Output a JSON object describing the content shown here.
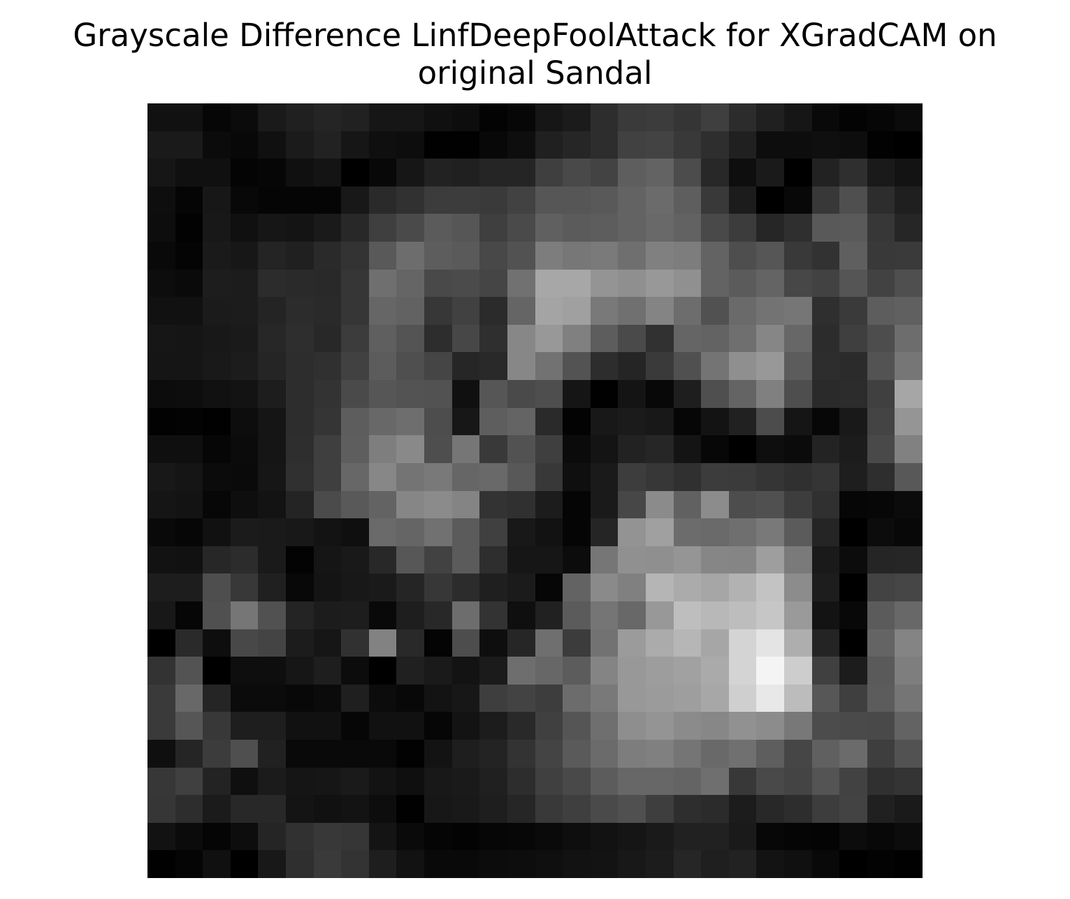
{
  "chart_data": {
    "type": "heatmap",
    "title_lines": [
      "Grayscale Difference LinfDeepFoolAttack for XGradCAM on",
      "original Sandal"
    ],
    "colormap": "gray",
    "axes": "off",
    "grid": false,
    "legend": "none",
    "rows": 28,
    "cols": 28,
    "values": [
      [
        17,
        17,
        6,
        11,
        26,
        32,
        37,
        33,
        22,
        22,
        16,
        13,
        3,
        7,
        22,
        27,
        45,
        58,
        60,
        53,
        63,
        44,
        32,
        22,
        9,
        3,
        6,
        11
      ],
      [
        26,
        26,
        11,
        8,
        16,
        27,
        34,
        22,
        15,
        13,
        1,
        1,
        8,
        14,
        32,
        38,
        45,
        65,
        67,
        57,
        46,
        32,
        13,
        13,
        15,
        13,
        2,
        0
      ],
      [
        22,
        16,
        16,
        4,
        6,
        16,
        20,
        0,
        8,
        22,
        34,
        32,
        37,
        37,
        63,
        73,
        67,
        94,
        99,
        76,
        40,
        14,
        26,
        0,
        34,
        47,
        26,
        19
      ],
      [
        14,
        5,
        23,
        8,
        5,
        5,
        5,
        24,
        42,
        49,
        60,
        60,
        58,
        66,
        86,
        86,
        89,
        99,
        107,
        94,
        57,
        28,
        0,
        8,
        56,
        79,
        45,
        31
      ],
      [
        13,
        2,
        24,
        16,
        22,
        20,
        26,
        40,
        63,
        74,
        91,
        86,
        63,
        74,
        96,
        91,
        93,
        99,
        105,
        98,
        73,
        60,
        38,
        47,
        89,
        90,
        55,
        38
      ],
      [
        9,
        4,
        26,
        23,
        36,
        32,
        42,
        51,
        89,
        109,
        93,
        90,
        72,
        82,
        125,
        119,
        122,
        111,
        128,
        125,
        99,
        78,
        86,
        57,
        50,
        95,
        57,
        58
      ],
      [
        13,
        10,
        29,
        28,
        44,
        42,
        41,
        54,
        111,
        101,
        73,
        75,
        69,
        113,
        167,
        167,
        148,
        143,
        152,
        144,
        99,
        91,
        100,
        71,
        66,
        85,
        66,
        79
      ],
      [
        17,
        17,
        27,
        28,
        36,
        44,
        42,
        54,
        102,
        98,
        55,
        65,
        43,
        101,
        164,
        160,
        121,
        112,
        132,
        109,
        81,
        106,
        115,
        118,
        47,
        58,
        93,
        96
      ],
      [
        22,
        21,
        24,
        26,
        39,
        46,
        40,
        60,
        95,
        84,
        45,
        71,
        47,
        135,
        152,
        128,
        93,
        74,
        49,
        101,
        99,
        111,
        134,
        103,
        44,
        63,
        77,
        109
      ],
      [
        21,
        21,
        25,
        28,
        37,
        45,
        48,
        65,
        92,
        79,
        69,
        38,
        41,
        135,
        114,
        83,
        45,
        37,
        58,
        80,
        116,
        143,
        152,
        92,
        45,
        43,
        83,
        118
      ],
      [
        12,
        13,
        17,
        19,
        29,
        45,
        51,
        74,
        86,
        83,
        82,
        16,
        86,
        74,
        78,
        21,
        1,
        20,
        8,
        30,
        79,
        100,
        128,
        78,
        42,
        44,
        64,
        166
      ],
      [
        2,
        3,
        1,
        13,
        21,
        45,
        53,
        93,
        104,
        110,
        77,
        23,
        94,
        100,
        42,
        3,
        24,
        27,
        24,
        6,
        19,
        33,
        76,
        21,
        7,
        25,
        68,
        149
      ],
      [
        15,
        15,
        6,
        11,
        21,
        46,
        63,
        94,
        126,
        137,
        78,
        118,
        57,
        82,
        63,
        11,
        20,
        34,
        38,
        20,
        7,
        0,
        14,
        11,
        35,
        28,
        73,
        129
      ],
      [
        24,
        21,
        11,
        10,
        22,
        48,
        63,
        103,
        135,
        116,
        121,
        102,
        105,
        88,
        56,
        15,
        26,
        61,
        55,
        48,
        60,
        59,
        53,
        48,
        53,
        30,
        46,
        88
      ],
      [
        21,
        19,
        7,
        14,
        19,
        36,
        75,
        89,
        99,
        134,
        139,
        132,
        51,
        48,
        28,
        5,
        26,
        71,
        139,
        97,
        140,
        77,
        80,
        61,
        48,
        6,
        7,
        11
      ],
      [
        9,
        6,
        17,
        27,
        26,
        24,
        19,
        15,
        106,
        101,
        113,
        91,
        64,
        24,
        18,
        5,
        37,
        147,
        160,
        108,
        106,
        111,
        121,
        91,
        37,
        0,
        12,
        8
      ],
      [
        18,
        17,
        39,
        44,
        26,
        3,
        21,
        25,
        40,
        87,
        66,
        91,
        46,
        22,
        22,
        12,
        118,
        144,
        143,
        149,
        134,
        133,
        158,
        122,
        26,
        12,
        37,
        38
      ],
      [
        29,
        29,
        78,
        56,
        32,
        8,
        20,
        24,
        26,
        37,
        55,
        44,
        31,
        27,
        6,
        99,
        138,
        128,
        181,
        171,
        166,
        178,
        195,
        140,
        29,
        0,
        67,
        70
      ],
      [
        24,
        6,
        80,
        118,
        81,
        36,
        28,
        29,
        9,
        30,
        40,
        109,
        51,
        15,
        33,
        91,
        117,
        104,
        152,
        190,
        184,
        189,
        198,
        154,
        19,
        8,
        91,
        104
      ],
      [
        0,
        42,
        14,
        72,
        68,
        28,
        22,
        49,
        130,
        41,
        4,
        77,
        14,
        38,
        111,
        60,
        114,
        155,
        171,
        182,
        166,
        212,
        228,
        174,
        36,
        0,
        100,
        132
      ],
      [
        51,
        83,
        0,
        14,
        14,
        22,
        30,
        12,
        0,
        32,
        26,
        19,
        27,
        110,
        103,
        92,
        132,
        152,
        157,
        161,
        170,
        212,
        244,
        205,
        64,
        28,
        90,
        126
      ],
      [
        58,
        104,
        37,
        11,
        11,
        8,
        11,
        31,
        12,
        8,
        19,
        23,
        62,
        67,
        61,
        108,
        121,
        152,
        155,
        158,
        167,
        207,
        232,
        188,
        87,
        63,
        92,
        117
      ],
      [
        58,
        86,
        56,
        30,
        30,
        17,
        17,
        6,
        17,
        17,
        6,
        19,
        28,
        41,
        64,
        85,
        111,
        142,
        148,
        139,
        135,
        145,
        140,
        120,
        76,
        74,
        73,
        99
      ],
      [
        15,
        37,
        60,
        79,
        33,
        9,
        9,
        9,
        9,
        2,
        19,
        30,
        35,
        51,
        68,
        90,
        107,
        125,
        128,
        117,
        105,
        112,
        94,
        70,
        96,
        107,
        62,
        82
      ],
      [
        55,
        64,
        35,
        15,
        27,
        21,
        22,
        26,
        19,
        15,
        24,
        26,
        32,
        45,
        64,
        73,
        92,
        103,
        103,
        100,
        111,
        56,
        73,
        68,
        84,
        66,
        48,
        52
      ],
      [
        54,
        45,
        27,
        40,
        40,
        20,
        17,
        19,
        13,
        1,
        23,
        25,
        30,
        38,
        57,
        63,
        74,
        80,
        62,
        46,
        43,
        28,
        40,
        45,
        61,
        67,
        32,
        26
      ],
      [
        18,
        11,
        5,
        13,
        37,
        49,
        56,
        54,
        20,
        10,
        5,
        3,
        6,
        7,
        10,
        14,
        18,
        21,
        26,
        33,
        33,
        26,
        7,
        5,
        4,
        12,
        8,
        12
      ],
      [
        1,
        5,
        16,
        0,
        24,
        47,
        58,
        51,
        30,
        18,
        9,
        9,
        12,
        13,
        15,
        18,
        19,
        24,
        28,
        38,
        31,
        34,
        19,
        16,
        9,
        0,
        3,
        1
      ]
    ]
  }
}
